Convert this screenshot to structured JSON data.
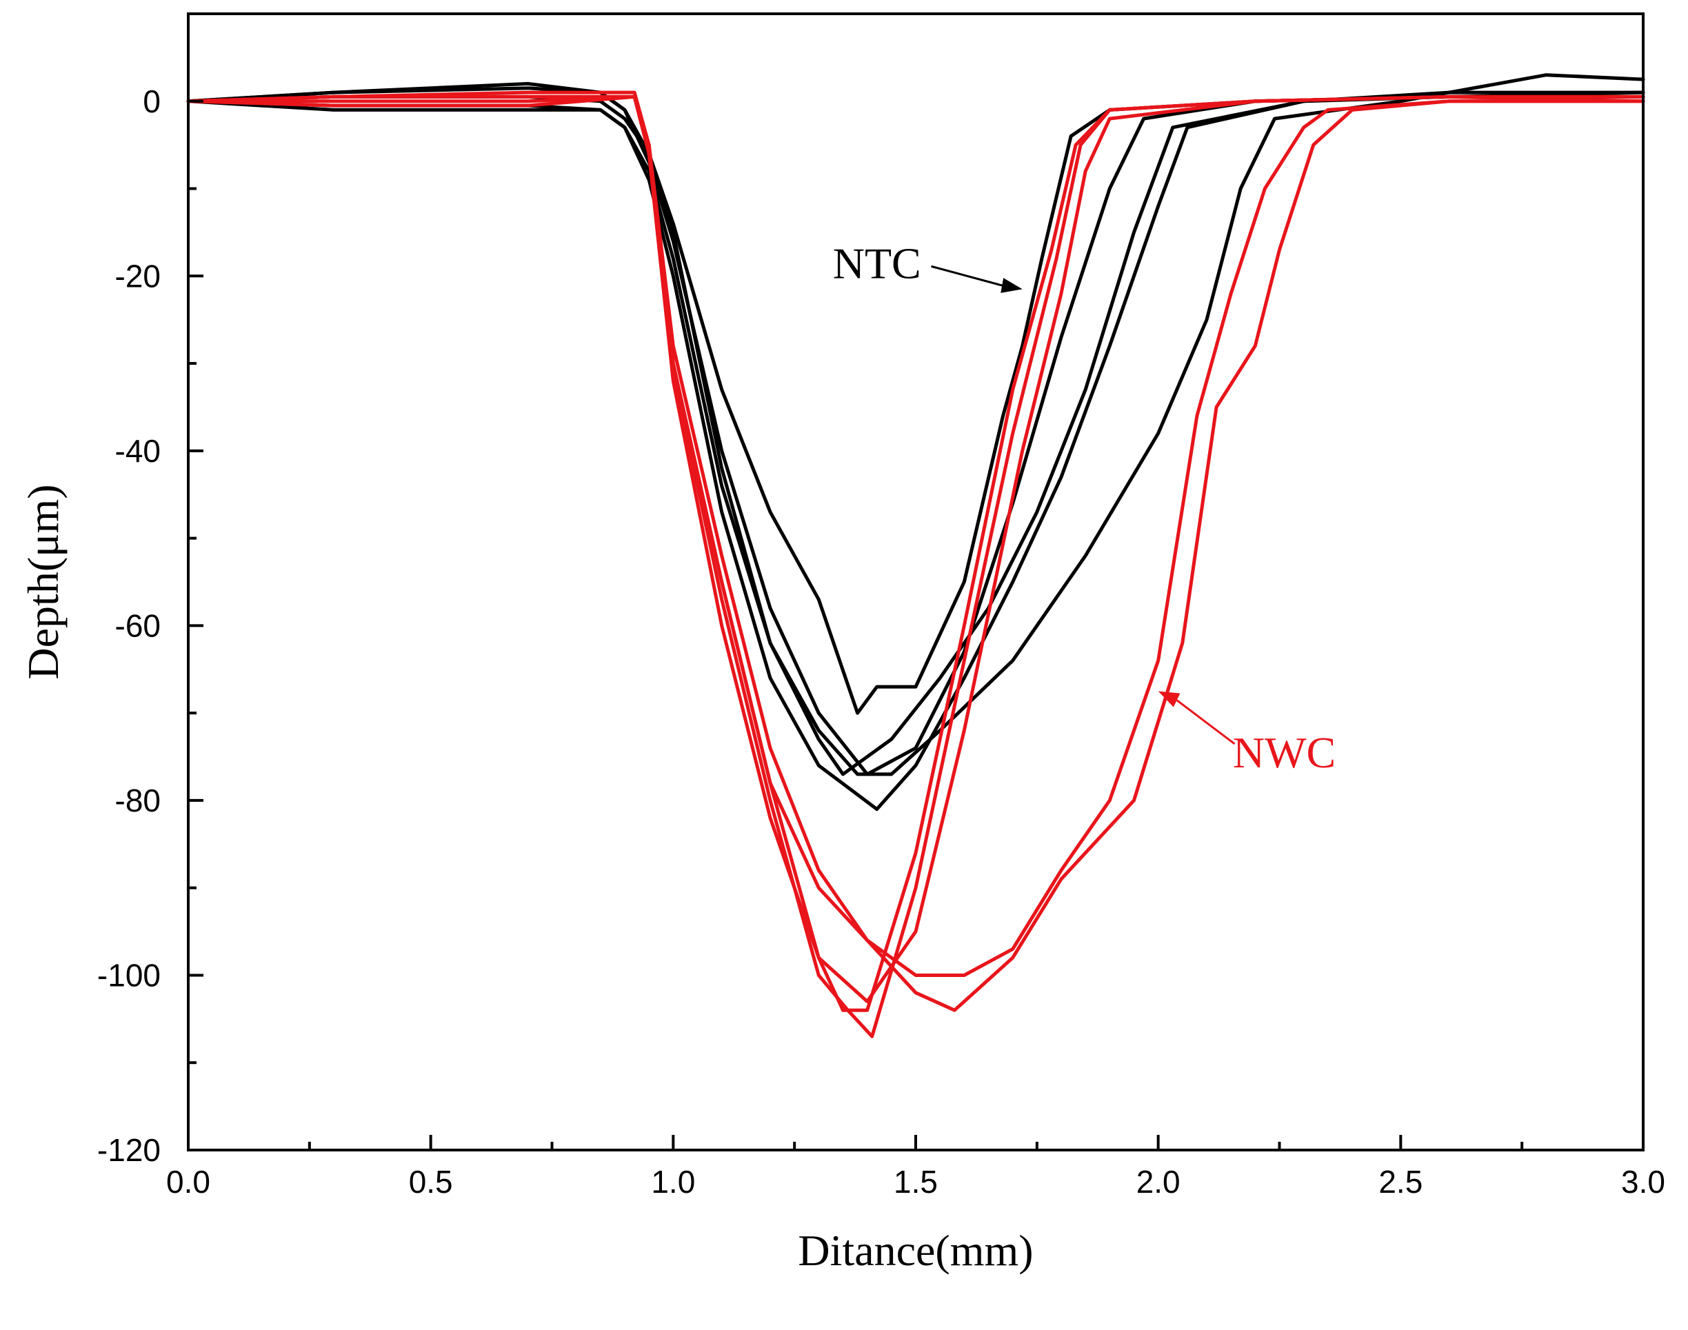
{
  "chart_data": {
    "type": "line",
    "title": "",
    "xlabel": "Ditance(mm)",
    "ylabel": "Depth(μm)",
    "xlim": [
      0.0,
      3.0
    ],
    "ylim": [
      -120,
      10
    ],
    "x_ticks": [
      0.0,
      0.5,
      1.0,
      1.5,
      2.0,
      2.5,
      3.0
    ],
    "x_tick_labels": [
      "0.0",
      "0.5",
      "1.0",
      "1.5",
      "2.0",
      "2.5",
      "3.0"
    ],
    "y_ticks": [
      0,
      -20,
      -40,
      -60,
      -80,
      -100,
      -120
    ],
    "y_tick_labels": [
      "0",
      "-20",
      "-40",
      "-60",
      "-80",
      "-100",
      "-120"
    ],
    "grid": false,
    "annotations": [
      {
        "text": "NTC",
        "color": "#000000",
        "text_at": [
          1.42,
          -18.5
        ],
        "arrow_to": [
          1.72,
          -21.5
        ]
      },
      {
        "text": "NWC",
        "color": "#e8151b",
        "text_at": [
          2.26,
          -74.5
        ],
        "arrow_to": [
          2.0,
          -67.5
        ]
      }
    ],
    "series": [
      {
        "group": "NTC",
        "color": "#000000",
        "x": [
          0.0,
          0.3,
          0.7,
          0.85,
          0.9,
          0.95,
          1.0,
          1.1,
          1.2,
          1.3,
          1.38,
          1.42,
          1.5,
          1.6,
          1.68,
          1.72,
          1.76,
          1.82,
          1.9,
          2.2,
          2.6,
          3.0
        ],
        "y": [
          0,
          0.5,
          0.5,
          0,
          -2,
          -6,
          -14,
          -33,
          -47,
          -57,
          -70,
          -67,
          -67,
          -55,
          -36,
          -28,
          -18,
          -4,
          -1,
          0,
          0.5,
          0.5
        ]
      },
      {
        "group": "NTC",
        "color": "#000000",
        "x": [
          0.0,
          0.3,
          0.7,
          0.85,
          0.9,
          0.95,
          1.0,
          1.1,
          1.2,
          1.3,
          1.4,
          1.5,
          1.6,
          1.7,
          1.8,
          1.9,
          1.97,
          2.2,
          2.6,
          3.0
        ],
        "y": [
          0,
          1,
          2,
          1,
          -1,
          -7,
          -16,
          -40,
          -58,
          -70,
          -77,
          -74,
          -63,
          -46,
          -27,
          -10,
          -2,
          0,
          0.5,
          1
        ]
      },
      {
        "group": "NTC",
        "color": "#000000",
        "x": [
          0.0,
          0.3,
          0.7,
          0.85,
          0.9,
          0.95,
          1.0,
          1.1,
          1.2,
          1.3,
          1.35,
          1.45,
          1.55,
          1.65,
          1.75,
          1.85,
          1.95,
          2.03,
          2.3,
          2.6,
          3.0
        ],
        "y": [
          0,
          -1,
          -1,
          -1,
          -3,
          -8,
          -18,
          -44,
          -62,
          -73,
          -77,
          -73,
          -66,
          -58,
          -47,
          -33,
          -15,
          -3,
          0,
          0.5,
          0.5
        ]
      },
      {
        "group": "NTC",
        "color": "#000000",
        "x": [
          0.0,
          0.3,
          0.7,
          0.85,
          0.9,
          0.95,
          1.0,
          1.1,
          1.2,
          1.3,
          1.42,
          1.5,
          1.6,
          1.7,
          1.8,
          1.9,
          2.0,
          2.06,
          2.3,
          2.6,
          3.0
        ],
        "y": [
          0,
          -0.5,
          -0.5,
          -1,
          -3,
          -9,
          -20,
          -47,
          -66,
          -76,
          -81,
          -76,
          -66,
          -55,
          -43,
          -28,
          -12,
          -3,
          0,
          1,
          1
        ]
      },
      {
        "group": "NTC",
        "color": "#000000",
        "x": [
          0.0,
          0.3,
          0.7,
          0.85,
          0.9,
          0.95,
          1.0,
          1.1,
          1.2,
          1.3,
          1.38,
          1.45,
          1.55,
          1.7,
          1.85,
          2.0,
          2.1,
          2.17,
          2.24,
          2.5,
          2.7,
          2.8,
          3.0
        ],
        "y": [
          0,
          1,
          1.5,
          1,
          -1,
          -6,
          -15,
          -42,
          -62,
          -72,
          -77,
          -77,
          -72,
          -64,
          -52,
          -38,
          -25,
          -10,
          -2,
          0,
          2,
          3,
          2.5
        ]
      },
      {
        "group": "NWC",
        "color": "#e8151b",
        "x": [
          0.0,
          0.3,
          0.7,
          0.92,
          0.95,
          1.0,
          1.1,
          1.2,
          1.3,
          1.35,
          1.4,
          1.5,
          1.6,
          1.7,
          1.78,
          1.83,
          1.9,
          2.2,
          2.6,
          3.0
        ],
        "y": [
          0,
          0.5,
          1,
          1,
          -5,
          -30,
          -55,
          -78,
          -98,
          -104,
          -104,
          -86,
          -60,
          -33,
          -17,
          -5,
          -1,
          0,
          0.5,
          0.5
        ]
      },
      {
        "group": "NWC",
        "color": "#e8151b",
        "x": [
          0.0,
          0.3,
          0.7,
          0.92,
          0.95,
          1.0,
          1.1,
          1.2,
          1.3,
          1.36,
          1.41,
          1.5,
          1.6,
          1.7,
          1.79,
          1.84,
          1.9,
          2.2,
          2.6,
          3.0
        ],
        "y": [
          0,
          0.5,
          0.5,
          0.5,
          -5,
          -31,
          -57,
          -80,
          -100,
          -104,
          -107,
          -90,
          -64,
          -38,
          -18,
          -5,
          -1,
          0,
          0.5,
          0
        ]
      },
      {
        "group": "NWC",
        "color": "#e8151b",
        "x": [
          0.0,
          0.3,
          0.7,
          0.92,
          0.95,
          1.0,
          1.1,
          1.2,
          1.3,
          1.4,
          1.5,
          1.6,
          1.72,
          1.8,
          1.85,
          1.9,
          2.2,
          2.6,
          3.0
        ],
        "y": [
          0,
          0.5,
          0.5,
          0.5,
          -6,
          -32,
          -60,
          -82,
          -98,
          -103,
          -95,
          -72,
          -40,
          -22,
          -8,
          -2,
          0,
          0.5,
          0.5
        ]
      },
      {
        "group": "NWC",
        "color": "#e8151b",
        "x": [
          0.0,
          0.3,
          0.7,
          0.92,
          0.95,
          1.0,
          1.1,
          1.2,
          1.3,
          1.4,
          1.5,
          1.6,
          1.7,
          1.8,
          1.9,
          2.0,
          2.08,
          2.15,
          2.22,
          2.3,
          2.35,
          2.6,
          3.0
        ],
        "y": [
          0,
          -0.5,
          -0.5,
          0.5,
          -6,
          -30,
          -55,
          -78,
          -90,
          -96,
          -100,
          -100,
          -97,
          -88,
          -80,
          -64,
          -36,
          -22,
          -10,
          -3,
          -1,
          0,
          0
        ]
      },
      {
        "group": "NWC",
        "color": "#e8151b",
        "x": [
          0.0,
          0.3,
          0.7,
          0.92,
          0.95,
          1.0,
          1.1,
          1.2,
          1.3,
          1.4,
          1.5,
          1.58,
          1.7,
          1.8,
          1.95,
          2.05,
          2.12,
          2.2,
          2.25,
          2.32,
          2.4,
          2.6,
          3.0
        ],
        "y": [
          0,
          0,
          0,
          0.5,
          -5,
          -28,
          -52,
          -74,
          -88,
          -96,
          -102,
          -104,
          -98,
          -89,
          -80,
          -62,
          -35,
          -28,
          -17,
          -5,
          -1,
          0,
          0
        ]
      }
    ]
  }
}
